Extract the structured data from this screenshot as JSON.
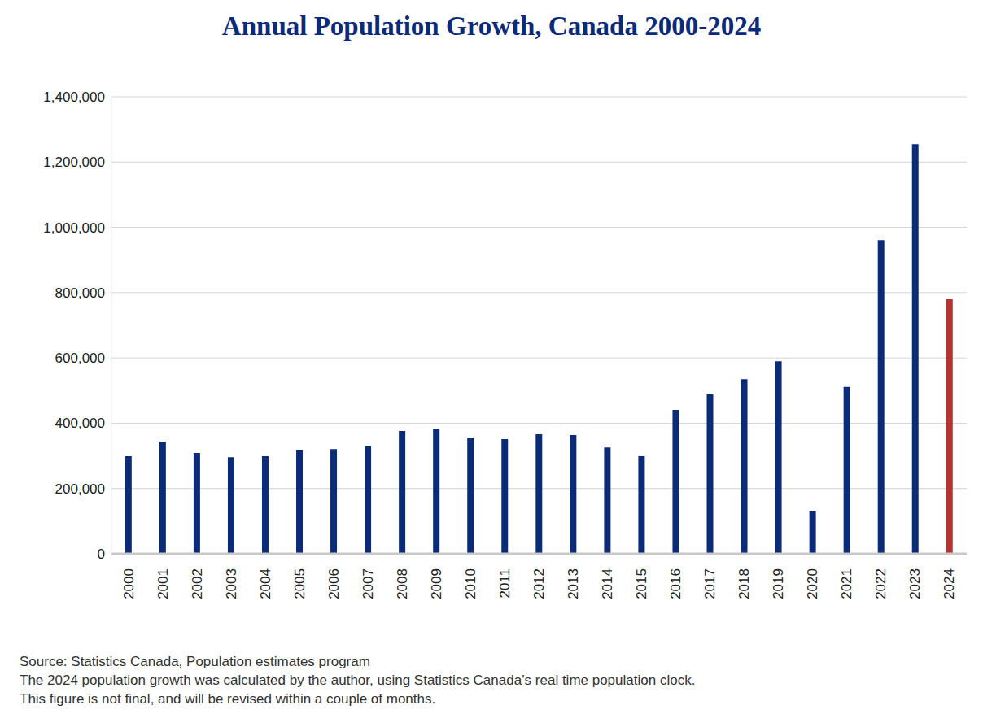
{
  "chart_data": {
    "type": "bar",
    "title": "Annual Population Growth, Canada 2000-2024",
    "categories": [
      "2000",
      "2001",
      "2002",
      "2003",
      "2004",
      "2005",
      "2006",
      "2007",
      "2008",
      "2009",
      "2010",
      "2011",
      "2012",
      "2013",
      "2014",
      "2015",
      "2016",
      "2017",
      "2018",
      "2019",
      "2020",
      "2021",
      "2022",
      "2023",
      "2024"
    ],
    "values": [
      299000,
      344000,
      309000,
      296000,
      299000,
      319000,
      321000,
      331000,
      376000,
      381000,
      356000,
      351000,
      366000,
      364000,
      326000,
      299000,
      441000,
      488000,
      535000,
      590000,
      132000,
      511000,
      961000,
      1255000,
      780000
    ],
    "colors": [
      "#0b2a78",
      "#0b2a78",
      "#0b2a78",
      "#0b2a78",
      "#0b2a78",
      "#0b2a78",
      "#0b2a78",
      "#0b2a78",
      "#0b2a78",
      "#0b2a78",
      "#0b2a78",
      "#0b2a78",
      "#0b2a78",
      "#0b2a78",
      "#0b2a78",
      "#0b2a78",
      "#0b2a78",
      "#0b2a78",
      "#0b2a78",
      "#0b2a78",
      "#0b2a78",
      "#0b2a78",
      "#0b2a78",
      "#0b2a78",
      "#b83232"
    ],
    "ylim": [
      0,
      1400000
    ],
    "yticks": [
      0,
      {
        "value": 200000,
        "label": "200,000"
      },
      {
        "value": 400000,
        "label": "400,000"
      },
      {
        "value": 600000,
        "label": "600,000"
      },
      {
        "value": 800000,
        "label": "800,000"
      },
      {
        "value": 1000000,
        "label": "1,000,000"
      },
      {
        "value": 1200000,
        "label": "1,200,000"
      },
      {
        "value": 1400000,
        "label": "1,400,000"
      }
    ],
    "grid": true,
    "notes": [
      "Source: Statistics Canada, Population estimates program",
      "The 2024 population growth was calculated by the author, using Statistics Canada’s real time population clock.",
      "This figure is not final, and will be revised within a couple of months."
    ]
  }
}
